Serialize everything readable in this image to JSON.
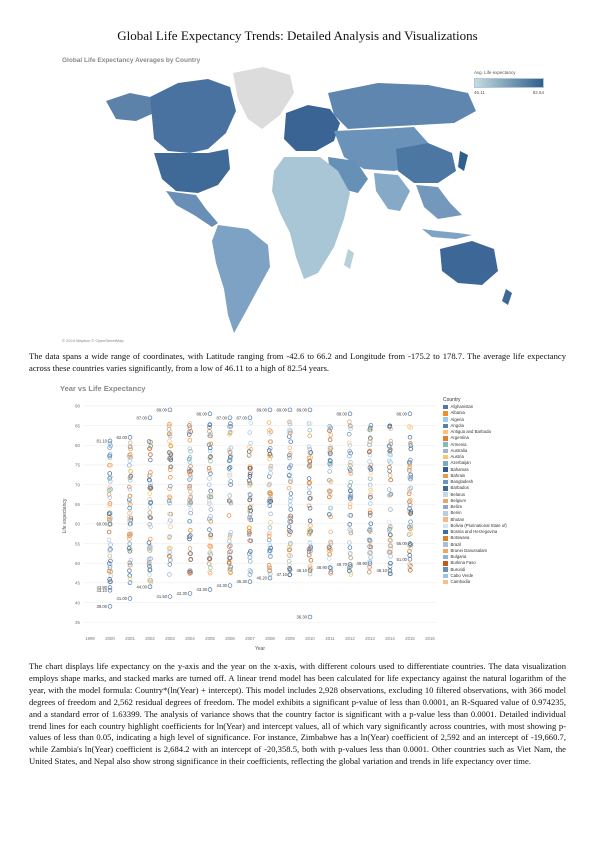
{
  "title": "Global Life Expectancy Trends: Detailed Analysis and Visualizations",
  "map": {
    "title": "Global Life Expectancy Averages by Country",
    "attribution": "© 2024 Mapbox © OpenStreetMap",
    "legend_title": "Avg. Life expectancy",
    "legend_min": "46.11",
    "legend_max": "82.54",
    "color_low": "#c6dbe1",
    "color_high": "#2f5f8c",
    "no_data_color": "#dcdcdc"
  },
  "paragraph1": "The data spans a wide range of coordinates, with Latitude ranging from -42.6 to 66.2 and Longitude from -175.2 to 178.7. The average life expectancy across these countries varies significantly, from a low of 46.11 to a high of 82.54 years.",
  "chart_data": {
    "type": "scatter",
    "title": "Year vs Life Expectancy",
    "xlabel": "Year",
    "ylabel": "Life expectancy",
    "x_ticks": [
      "1999",
      "2000",
      "2001",
      "2002",
      "2003",
      "2004",
      "2005",
      "2006",
      "2007",
      "2008",
      "2009",
      "2010",
      "2011",
      "2012",
      "2013",
      "2014",
      "2015",
      "2016"
    ],
    "ylim": [
      33,
      91
    ],
    "y_ticks": [
      35,
      40,
      45,
      50,
      55,
      60,
      65,
      70,
      75,
      80,
      85,
      90
    ],
    "grid": true,
    "legend_title": "Country",
    "legend_position": "right",
    "annotations": [
      {
        "x": 2000,
        "y": 81.1,
        "label": "81.10"
      },
      {
        "x": 2000,
        "y": 60.0,
        "label": "60.00"
      },
      {
        "x": 2000,
        "y": 43.8,
        "label": "43.80"
      },
      {
        "x": 2000,
        "y": 43.1,
        "label": "43.10"
      },
      {
        "x": 2000,
        "y": 39.0,
        "label": "39.00"
      },
      {
        "x": 2001,
        "y": 82.0,
        "label": "82.00"
      },
      {
        "x": 2001,
        "y": 41.0,
        "label": "41.00"
      },
      {
        "x": 2002,
        "y": 87.0,
        "label": "87.00"
      },
      {
        "x": 2002,
        "y": 44.0,
        "label": "44.00"
      },
      {
        "x": 2003,
        "y": 89.0,
        "label": "89.00"
      },
      {
        "x": 2003,
        "y": 41.5,
        "label": "41.50"
      },
      {
        "x": 2004,
        "y": 42.3,
        "label": "42.30"
      },
      {
        "x": 2005,
        "y": 88.0,
        "label": "88.00"
      },
      {
        "x": 2005,
        "y": 43.3,
        "label": "43.30"
      },
      {
        "x": 2006,
        "y": 87.0,
        "label": "87.00"
      },
      {
        "x": 2006,
        "y": 44.3,
        "label": "44.30"
      },
      {
        "x": 2007,
        "y": 87.0,
        "label": "87.00"
      },
      {
        "x": 2007,
        "y": 45.3,
        "label": "45.30"
      },
      {
        "x": 2008,
        "y": 89.0,
        "label": "89.00"
      },
      {
        "x": 2008,
        "y": 46.2,
        "label": "46.20"
      },
      {
        "x": 2009,
        "y": 89.0,
        "label": "89.00"
      },
      {
        "x": 2009,
        "y": 47.1,
        "label": "47.10"
      },
      {
        "x": 2010,
        "y": 89.0,
        "label": "89.00"
      },
      {
        "x": 2010,
        "y": 48.1,
        "label": "48.10"
      },
      {
        "x": 2010,
        "y": 36.3,
        "label": "36.30"
      },
      {
        "x": 2011,
        "y": 48.9,
        "label": "48.90"
      },
      {
        "x": 2012,
        "y": 88.0,
        "label": "88.00"
      },
      {
        "x": 2012,
        "y": 49.7,
        "label": "49.70"
      },
      {
        "x": 2013,
        "y": 49.9,
        "label": "49.90"
      },
      {
        "x": 2014,
        "y": 48.1,
        "label": "48.10"
      },
      {
        "x": 2015,
        "y": 88.0,
        "label": "88.00"
      },
      {
        "x": 2015,
        "y": 55.0,
        "label": "55.00"
      },
      {
        "x": 2015,
        "y": 51.0,
        "label": "51.00"
      }
    ],
    "series": [
      {
        "name": "Afghanistan",
        "color": "#4e79a7"
      },
      {
        "name": "Albania",
        "color": "#f28e2b"
      },
      {
        "name": "Algeria",
        "color": "#a0cbe8"
      },
      {
        "name": "Angola",
        "color": "#5a7fa8"
      },
      {
        "name": "Antigua and Barbuda",
        "color": "#ffbe7d"
      },
      {
        "name": "Argentina",
        "color": "#e07b39"
      },
      {
        "name": "Armenia",
        "color": "#86bcb6"
      },
      {
        "name": "Australia",
        "color": "#9db7d0"
      },
      {
        "name": "Austria",
        "color": "#f1ce63"
      },
      {
        "name": "Azerbaijan",
        "color": "#7fa6c9"
      },
      {
        "name": "Bahamas",
        "color": "#2e5c8a"
      },
      {
        "name": "Bahrain",
        "color": "#e39a52"
      },
      {
        "name": "Bangladesh",
        "color": "#6b95c2"
      },
      {
        "name": "Barbados",
        "color": "#3d6b99"
      },
      {
        "name": "Belarus",
        "color": "#c4d7e6"
      },
      {
        "name": "Belgium",
        "color": "#e8a56a"
      },
      {
        "name": "Belize",
        "color": "#8fa9c4"
      },
      {
        "name": "Benin",
        "color": "#b6cce0"
      },
      {
        "name": "Bhutan",
        "color": "#f4b97f"
      },
      {
        "name": "Bolivia (Plurinational State of)",
        "color": "#d7e4ef"
      },
      {
        "name": "Bosnia and Herzegovina",
        "color": "#3b6ea5"
      },
      {
        "name": "Botswana",
        "color": "#d9822b"
      },
      {
        "name": "Brazil",
        "color": "#a6c0da"
      },
      {
        "name": "Brunei Darussalam",
        "color": "#f3a65a"
      },
      {
        "name": "Bulgaria",
        "color": "#8cb3d9"
      },
      {
        "name": "Burkina Faso",
        "color": "#c45a1a"
      },
      {
        "name": "Burundi",
        "color": "#6f8fb0"
      },
      {
        "name": "Cabo Verde",
        "color": "#9cc4e4"
      },
      {
        "name": "Cambodia",
        "color": "#f7c08a"
      }
    ]
  },
  "paragraph2": "The chart displays life expectancy on the y-axis and the year on the x-axis, with different colours used to differentiate countries. The data visualization employs shape marks, and stacked marks are turned off. A linear trend model has been calculated for life expectancy against the natural logarithm of the year, with the model formula: Country*(ln(Year) + intercept). This model includes 2,928 observations, excluding 10 filtered observations, with 366 model degrees of freedom and 2,562 residual degrees of freedom. The model exhibits a significant p-value of less than 0.0001, an R-Squared value of 0.974235, and a standard error of 1.63399. The analysis of variance shows that the country factor is significant with a p-value less than 0.0001. Detailed individual trend lines for each country highlight coefficients for ln(Year) and intercept values, all of which vary significantly across countries, with most showing p-values of less than 0.05, indicating a high level of significance. For instance, Zimbabwe has a ln(Year) coefficient of 2,592 and an intercept of -19,660.7, while Zambia's ln(Year) coefficient is 2,684.2 with an intercept of -20,358.5, both with p-values less than 0.0001. Other countries such as Viet Nam, the United States, and Nepal also show strong significance in their coefficients, reflecting the global variation and trends in life expectancy over time."
}
